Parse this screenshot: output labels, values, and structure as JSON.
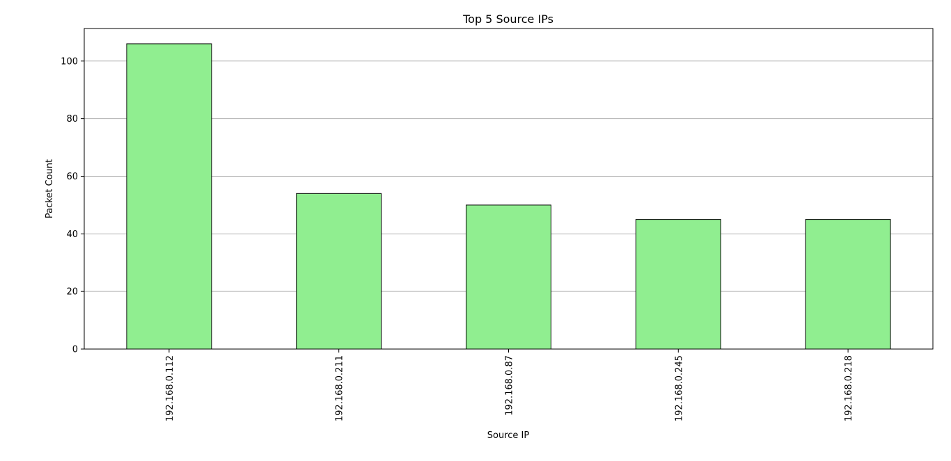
{
  "chart_data": {
    "type": "bar",
    "title": "Top 5 Source IPs",
    "xlabel": "Source IP",
    "ylabel": "Packet Count",
    "categories": [
      "192.168.0.112",
      "192.168.0.211",
      "192.168.0.87",
      "192.168.0.245",
      "192.168.0.218"
    ],
    "values": [
      106,
      54,
      50,
      45,
      45
    ],
    "ylim": [
      0,
      111.3
    ],
    "yticks": [
      0,
      20,
      40,
      60,
      80,
      100
    ],
    "ytick_labels": [
      "0",
      "20",
      "40",
      "60",
      "80",
      "100"
    ],
    "grid": "y-major",
    "bar_color": "#90ee90",
    "bar_edge_color": "#000000",
    "grid_color": "#b0b0b0"
  }
}
